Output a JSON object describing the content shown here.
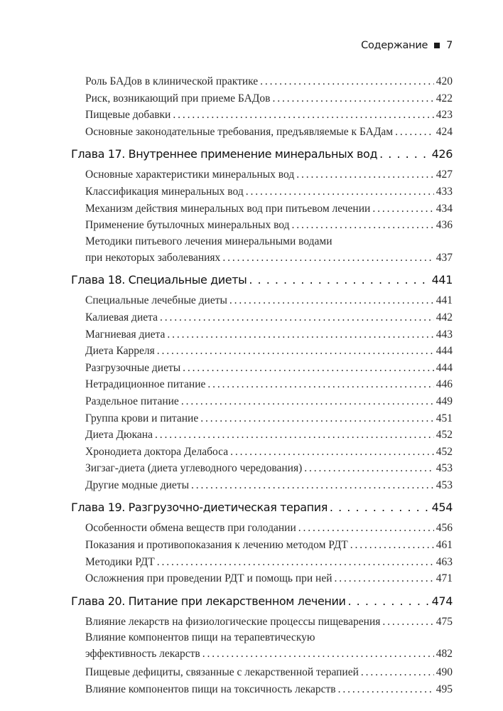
{
  "header": {
    "title": "Содержание",
    "page": "7"
  },
  "toc": [
    {
      "type": "sub",
      "title": "Роль БАДов в клинической практике",
      "page": "420"
    },
    {
      "type": "sub",
      "title": "Риск, возникающий при приеме БАДов",
      "page": "422"
    },
    {
      "type": "sub",
      "title": "Пищевые добавки",
      "page": "423"
    },
    {
      "type": "sub",
      "title": "Основные законодательные требования, предъявляемые к БАДам",
      "page": "424"
    },
    {
      "type": "chap",
      "title": "Глава 17. Внутреннее применение минеральных вод",
      "page": "426"
    },
    {
      "type": "sub",
      "title": "Основные характеристики минеральных вод",
      "page": "427"
    },
    {
      "type": "sub",
      "title": "Классификация минеральных вод",
      "page": "433"
    },
    {
      "type": "sub",
      "title": "Механизм действия минеральных вод при питьевом лечении",
      "page": "434"
    },
    {
      "type": "sub",
      "title": "Применение бутылочных минеральных вод",
      "page": "436"
    },
    {
      "type": "sub2",
      "line1": "Методики питьевого лечения минеральными водами",
      "title": "при некоторых заболеваниях",
      "page": "437"
    },
    {
      "type": "chap",
      "title": "Глава 18. Специальные диеты",
      "page": "441"
    },
    {
      "type": "sub",
      "title": "Специальные лечебные диеты",
      "page": "441"
    },
    {
      "type": "sub",
      "title": "Калиевая диета",
      "page": "442"
    },
    {
      "type": "sub",
      "title": "Магниевая диета",
      "page": "443"
    },
    {
      "type": "sub",
      "title": "Диета Карреля",
      "page": "444"
    },
    {
      "type": "sub",
      "title": "Разгрузочные диеты",
      "page": "444"
    },
    {
      "type": "sub",
      "title": "Нетрадиционное питание",
      "page": "446"
    },
    {
      "type": "sub",
      "title": "Раздельное питание",
      "page": "449"
    },
    {
      "type": "sub",
      "title": "Группа крови и питание",
      "page": "451"
    },
    {
      "type": "sub",
      "title": "Диета Дюкана",
      "page": "452"
    },
    {
      "type": "sub",
      "title": "Хронодиета доктора Делабоса",
      "page": "452"
    },
    {
      "type": "sub",
      "title": "Зигзаг-диета (диета углеводного чередования)",
      "page": "453"
    },
    {
      "type": "sub",
      "title": "Другие модные диеты",
      "page": "453"
    },
    {
      "type": "chap",
      "title": "Глава 19. Разгрузочно-диетическая терапия",
      "page": "454"
    },
    {
      "type": "sub",
      "title": "Особенности обмена веществ при голодании",
      "page": "456"
    },
    {
      "type": "sub",
      "title": "Показания и противопоказания к лечению методом РДТ",
      "page": "461"
    },
    {
      "type": "sub",
      "title": "Методики РДТ",
      "page": "463"
    },
    {
      "type": "sub",
      "title": "Осложнения при проведении РДТ и помощь при ней",
      "page": "471"
    },
    {
      "type": "chap",
      "title": "Глава 20. Питание при лекарственном лечении",
      "page": "474"
    },
    {
      "type": "sub",
      "title": "Влияние лекарств на физиологические процессы пищеварения",
      "page": "475"
    },
    {
      "type": "sub2",
      "line1": "Влияние компонентов пищи на терапевтическую",
      "title": "эффективность лекарств",
      "page": "482"
    },
    {
      "type": "sub",
      "title": "Пищевые дефициты, связанные с лекарственной терапией",
      "page": "490"
    },
    {
      "type": "sub",
      "title": "Влияние компонентов пищи на токсичность лекарств",
      "page": "495"
    }
  ]
}
